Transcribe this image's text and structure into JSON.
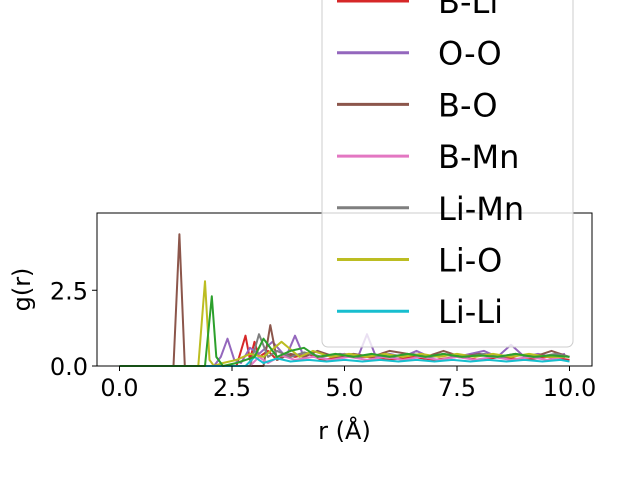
{
  "chart_data": {
    "type": "line",
    "xlabel": "r (Å)",
    "ylabel": "g(r)",
    "xlim": [
      -0.5,
      10.5
    ],
    "ylim": [
      0.0,
      5.05
    ],
    "xticks": [
      0.0,
      2.5,
      5.0,
      7.5,
      10.0
    ],
    "xtick_labels": [
      "0.0",
      "2.5",
      "5.0",
      "7.5",
      "10.0"
    ],
    "yticks": [
      0.0,
      2.5
    ],
    "ytick_labels": [
      "0.0",
      "2.5"
    ],
    "grid": false,
    "legend_position": "upper right (extends above plot)",
    "series": [
      {
        "name": "B-Li",
        "color": "#d62728",
        "x": [
          0,
          2.6,
          2.8,
          2.9,
          3.0,
          3.1,
          3.3,
          3.5,
          3.7,
          3.9,
          4.2,
          4.5,
          5.0,
          5.5,
          6.0,
          6.5,
          7.0,
          7.5,
          8.0,
          8.5,
          9.0,
          9.5,
          10.0
        ],
        "y": [
          0,
          0,
          1.0,
          0.2,
          0.8,
          0.3,
          0.5,
          0.2,
          0.4,
          0.3,
          0.4,
          0.2,
          0.3,
          0.3,
          0.2,
          0.3,
          0.2,
          0.3,
          0.2,
          0.3,
          0.2,
          0.3,
          0.2
        ]
      },
      {
        "name": "O-O",
        "color": "#9467bd",
        "x": [
          0,
          2.1,
          2.25,
          2.4,
          2.55,
          2.7,
          2.9,
          3.1,
          3.4,
          3.7,
          3.9,
          4.1,
          4.4,
          4.7,
          5.0,
          5.3,
          5.5,
          5.7,
          6.0,
          6.3,
          6.6,
          6.9,
          7.2,
          7.5,
          7.8,
          8.1,
          8.4,
          8.7,
          9.0,
          9.3,
          9.6,
          9.9
        ],
        "y": [
          0,
          0,
          0.3,
          0.9,
          0.2,
          0.1,
          0.6,
          0.4,
          0.8,
          0.3,
          1.0,
          0.3,
          0.5,
          0.3,
          0.4,
          0.3,
          1.05,
          0.3,
          0.4,
          0.3,
          0.5,
          0.3,
          0.4,
          0.3,
          0.4,
          0.5,
          0.3,
          0.7,
          0.3,
          0.4,
          0.3,
          0.4
        ]
      },
      {
        "name": "B-O",
        "color": "#8c564b",
        "x": [
          0,
          1.2,
          1.33,
          1.45,
          3.2,
          3.35,
          3.5,
          3.8,
          4.1,
          4.4,
          4.8,
          5.2,
          5.6,
          6.0,
          6.4,
          6.8,
          7.2,
          7.6,
          8.0,
          8.4,
          8.8,
          9.2,
          9.6,
          10.0
        ],
        "y": [
          0,
          0,
          4.35,
          0,
          0,
          1.35,
          0.2,
          0.4,
          0.3,
          0.5,
          0.3,
          0.4,
          0.3,
          0.5,
          0.4,
          0.3,
          0.5,
          0.3,
          0.4,
          0.3,
          0.4,
          0.3,
          0.5,
          0.3
        ]
      },
      {
        "name": "B-Mn",
        "color": "#e377c2",
        "x": [
          0,
          2.9,
          3.1,
          3.3,
          3.6,
          3.9,
          4.3,
          4.7,
          5.1,
          5.5,
          5.9,
          6.3,
          6.7,
          7.1,
          7.5,
          7.9,
          8.3,
          8.7,
          9.1,
          9.5,
          9.9
        ],
        "y": [
          0,
          0,
          0.3,
          0.1,
          0.35,
          0.2,
          0.3,
          0.2,
          0.3,
          0.2,
          0.3,
          0.2,
          0.3,
          0.2,
          0.3,
          0.2,
          0.3,
          0.2,
          0.3,
          0.2,
          0.3
        ]
      },
      {
        "name": "Li-Mn",
        "color": "#7f7f7f",
        "x": [
          0,
          2.9,
          3.1,
          3.3,
          3.5,
          3.8,
          4.1,
          4.5,
          4.9,
          5.3,
          5.7,
          6.1,
          6.5,
          6.9,
          7.3,
          7.7,
          8.1,
          8.5,
          8.9,
          9.3,
          9.7,
          10.0
        ],
        "y": [
          0,
          0,
          1.05,
          0.3,
          0.5,
          0.3,
          0.45,
          0.3,
          0.4,
          0.3,
          0.35,
          0.3,
          0.4,
          0.3,
          0.35,
          0.3,
          0.4,
          0.3,
          0.35,
          0.3,
          0.4,
          0.3
        ]
      },
      {
        "name": "Li-O",
        "color": "#bcbd22",
        "x": [
          0,
          1.75,
          1.9,
          2.0,
          2.1,
          2.3,
          2.6,
          2.9,
          3.2,
          3.6,
          4.0,
          4.3,
          4.7,
          5.1,
          5.5,
          5.9,
          6.3,
          6.7,
          7.1,
          7.5,
          7.9,
          8.3,
          8.7,
          9.1,
          9.5,
          9.9
        ],
        "y": [
          0,
          0,
          2.8,
          0.2,
          0,
          0.1,
          0.2,
          0.4,
          0.3,
          0.8,
          0.3,
          0.5,
          0.3,
          0.4,
          0.3,
          0.4,
          0.3,
          0.4,
          0.3,
          0.4,
          0.3,
          0.4,
          0.3,
          0.4,
          0.3,
          0.3
        ]
      },
      {
        "name": "Li-Li",
        "color": "#17becf",
        "x": [
          0,
          2.8,
          3.0,
          3.2,
          3.5,
          3.8,
          4.2,
          4.6,
          5.0,
          5.4,
          5.8,
          6.2,
          6.6,
          7.0,
          7.4,
          7.8,
          8.2,
          8.6,
          9.0,
          9.4,
          9.8,
          10.0
        ],
        "y": [
          0,
          0,
          0.3,
          0.1,
          0.25,
          0.15,
          0.2,
          0.15,
          0.2,
          0.15,
          0.2,
          0.15,
          0.2,
          0.15,
          0.2,
          0.15,
          0.2,
          0.15,
          0.2,
          0.15,
          0.2,
          0.15
        ]
      },
      {
        "name": "",
        "color": "#2ca02c",
        "x": [
          0,
          1.9,
          2.05,
          2.15,
          2.3,
          2.6,
          3.0,
          3.2,
          3.5,
          3.8,
          4.1,
          4.4,
          4.8,
          5.2,
          5.6,
          6.0,
          6.4,
          6.8,
          7.2,
          7.6,
          8.0,
          8.4,
          8.8,
          9.2,
          9.6,
          10.0
        ],
        "y": [
          0,
          0,
          2.3,
          0.3,
          0,
          0.1,
          0.3,
          0.9,
          0.3,
          0.5,
          0.6,
          0.3,
          0.4,
          0.3,
          0.4,
          0.3,
          0.4,
          0.3,
          0.4,
          0.3,
          0.35,
          0.3,
          0.4,
          0.3,
          0.35,
          0.3
        ]
      }
    ]
  }
}
